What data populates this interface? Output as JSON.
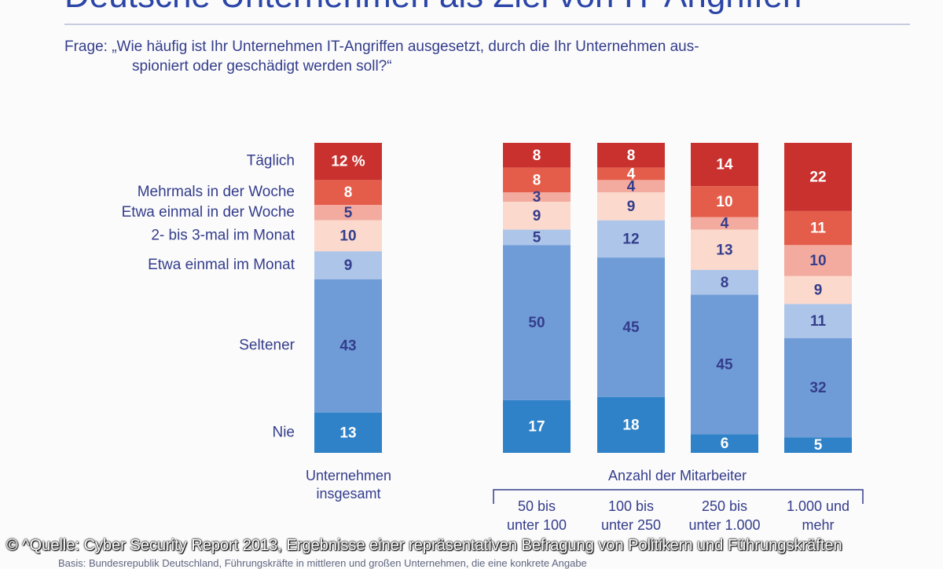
{
  "title": "Deutsche Unternehmen als Ziel von IT-Angriffen",
  "question": {
    "line1": "Frage: „Wie häufig ist Ihr Unternehmen IT-Angriffen ausgesetzt, durch die Ihr Unternehmen aus-",
    "line2": "spioniert oder geschädigt werden soll?“"
  },
  "colors": {
    "text_blue": "#343d8c",
    "bar_label_light": "#ffffff",
    "bar_label_dark": "#343d8c"
  },
  "chart_data": {
    "type": "bar",
    "stacked": true,
    "unit": "%",
    "categories": [
      "Unternehmen insgesamt",
      "50 bis unter 100",
      "100 bis unter 250",
      "250 bis unter 1.000",
      "1.000 und mehr"
    ],
    "category_labels": [
      [
        "Unternehmen",
        "insgesamt"
      ],
      [
        "50 bis",
        "unter 100"
      ],
      [
        "100 bis",
        "unter 250"
      ],
      [
        "250 bis",
        "unter 1.000"
      ],
      [
        "1.000 und",
        "mehr"
      ]
    ],
    "group_label": "Anzahl der Mitarbeiter",
    "series": [
      {
        "name": "Täglich",
        "color": "#c8312e",
        "label_color": "#ffffff",
        "values": [
          12,
          8,
          8,
          14,
          22
        ]
      },
      {
        "name": "Mehrmals in der Woche",
        "color": "#e45d4a",
        "label_color": "#ffffff",
        "values": [
          8,
          8,
          4,
          10,
          11
        ]
      },
      {
        "name": "Etwa einmal in der Woche",
        "color": "#f3ab9f",
        "label_color": "#343d8c",
        "values": [
          5,
          3,
          4,
          4,
          10
        ]
      },
      {
        "name": "2- bis 3-mal im Monat",
        "color": "#fbd9cd",
        "label_color": "#343d8c",
        "values": [
          10,
          9,
          9,
          13,
          9
        ]
      },
      {
        "name": "Etwa einmal im Monat",
        "color": "#adc5e8",
        "label_color": "#343d8c",
        "values": [
          9,
          5,
          12,
          8,
          11
        ]
      },
      {
        "name": "Seltener",
        "color": "#6f9cd7",
        "label_color": "#343d8c",
        "values": [
          43,
          50,
          45,
          45,
          32
        ]
      },
      {
        "name": "Nie",
        "color": "#2f82c7",
        "label_color": "#ffffff",
        "values": [
          13,
          17,
          18,
          6,
          5
        ]
      }
    ],
    "value_labels": [
      [
        "12 %",
        "8",
        "8",
        "14",
        "22"
      ],
      [
        "8",
        "8",
        "4",
        "10",
        "11"
      ],
      [
        "5",
        "3",
        "4",
        "4",
        "10"
      ],
      [
        "10",
        "9",
        "9",
        "13",
        "9"
      ],
      [
        "9",
        "5",
        "12",
        "8",
        "11"
      ],
      [
        "43",
        "50",
        "45",
        "45",
        "32"
      ],
      [
        "13",
        "17",
        "18",
        "6",
        "5"
      ]
    ]
  },
  "source": "© ^Quelle: Cyber Security Report 2013, Ergebnisse einer repräsentativen Befragung von Politikern und Führungskräften",
  "basis": "Basis: Bundesrepublik Deutschland, Führungskräfte in mittleren und großen Unternehmen, die eine konkrete Angabe"
}
